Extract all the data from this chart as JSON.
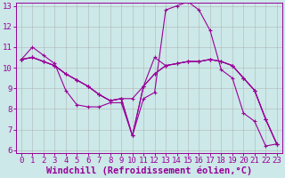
{
  "xlabel": "Windchill (Refroidissement éolien,°C)",
  "bg_color": "#cce8e8",
  "line_color": "#990099",
  "grid_color": "#aaaaaa",
  "xlim": [
    -0.5,
    23.5
  ],
  "ylim": [
    5.85,
    13.15
  ],
  "xticks": [
    0,
    1,
    2,
    3,
    4,
    5,
    6,
    7,
    8,
    9,
    10,
    11,
    12,
    13,
    14,
    15,
    16,
    17,
    18,
    19,
    20,
    21,
    22,
    23
  ],
  "yticks": [
    6,
    7,
    8,
    9,
    10,
    11,
    12,
    13
  ],
  "curves": [
    [
      10.4,
      11.0,
      10.6,
      10.2,
      8.9,
      8.2,
      8.1,
      8.1,
      8.3,
      8.3,
      6.7,
      8.5,
      8.8,
      12.8,
      13.0,
      13.2,
      12.8,
      11.8,
      9.9,
      9.5,
      7.8,
      7.4,
      6.2,
      6.3
    ],
    [
      10.4,
      10.5,
      10.3,
      10.1,
      9.7,
      9.4,
      9.1,
      8.7,
      8.4,
      8.5,
      8.5,
      9.1,
      9.7,
      10.1,
      10.2,
      10.3,
      10.3,
      10.4,
      10.3,
      10.1,
      9.5,
      8.9,
      7.5,
      6.3
    ],
    [
      10.4,
      10.5,
      10.3,
      10.1,
      9.7,
      9.4,
      9.1,
      8.7,
      8.4,
      8.5,
      6.7,
      9.1,
      10.5,
      10.1,
      10.2,
      10.3,
      10.3,
      10.4,
      10.3,
      10.1,
      9.5,
      8.9,
      7.5,
      6.3
    ],
    [
      10.4,
      10.5,
      10.3,
      10.1,
      9.7,
      9.4,
      9.1,
      8.7,
      8.4,
      8.5,
      6.7,
      9.1,
      9.7,
      10.1,
      10.2,
      10.3,
      10.3,
      10.4,
      10.3,
      10.1,
      9.5,
      8.9,
      7.5,
      6.3
    ]
  ],
  "font_family": "monospace",
  "tick_fontsize": 6.5,
  "label_fontsize": 7.5
}
